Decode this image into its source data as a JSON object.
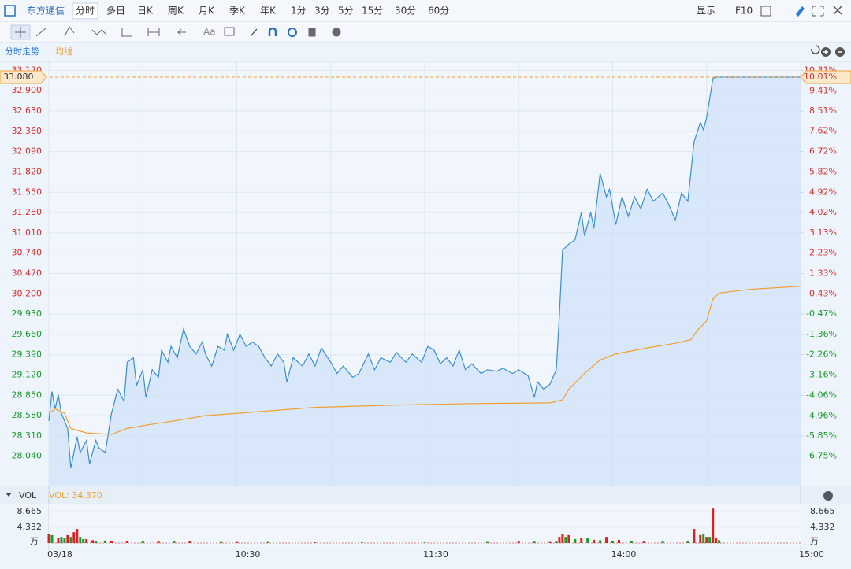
{
  "toolbar": {
    "stock": "东方通信",
    "periods": [
      "分时",
      "多日",
      "日K",
      "周K",
      "月K",
      "季K",
      "年K",
      "1分",
      "3分",
      "5分",
      "15分",
      "30分",
      "60分"
    ],
    "display": "显示",
    "f10": "F10",
    "text_tool": "Aa"
  },
  "tabs": [
    "分时走势",
    "均线"
  ],
  "chart_data": [
    {
      "type": "line",
      "xlim": [
        0,
        240
      ],
      "xticks": [
        {
          "value": 0,
          "label": "03/18"
        },
        {
          "value": 60,
          "label": "10:30"
        },
        {
          "value": 120,
          "label": "11:30"
        },
        {
          "value": 180,
          "label": "14:00"
        },
        {
          "value": 240,
          "label": "15:00"
        }
      ],
      "ylim": [
        27.65,
        33.185
      ],
      "yticks": [
        {
          "value": 28.04,
          "label": "28.040"
        },
        {
          "value": 28.31,
          "label": "28.310"
        },
        {
          "value": 28.58,
          "label": "28.580"
        },
        {
          "value": 28.85,
          "label": "28.850"
        },
        {
          "value": 29.12,
          "label": "29.120"
        },
        {
          "value": 29.39,
          "label": "29.390"
        },
        {
          "value": 29.66,
          "label": "29.660"
        },
        {
          "value": 29.93,
          "label": "29.930"
        },
        {
          "value": 30.2,
          "label": "30.200"
        },
        {
          "value": 30.47,
          "label": "30.470"
        },
        {
          "value": 30.74,
          "label": "30.740"
        },
        {
          "value": 31.01,
          "label": "31.010"
        },
        {
          "value": 31.28,
          "label": "31.280"
        },
        {
          "value": 31.55,
          "label": "31.550"
        },
        {
          "value": 31.82,
          "label": "31.820"
        },
        {
          "value": 32.09,
          "label": "32.090"
        },
        {
          "value": 32.36,
          "label": "32.360"
        },
        {
          "value": 32.63,
          "label": "32.630"
        },
        {
          "value": 32.9,
          "label": "32.900"
        },
        {
          "value": 33.17,
          "label": "33.170"
        }
      ],
      "y2lim": [
        -8.048,
        10.359
      ],
      "y2ticks": [
        {
          "value": -6.75,
          "label": "-6.75%"
        },
        {
          "value": -5.85,
          "label": "-5.85%"
        },
        {
          "value": -4.96,
          "label": "-4.96%"
        },
        {
          "value": -4.06,
          "label": "-4.06%"
        },
        {
          "value": -3.16,
          "label": "-3.16%"
        },
        {
          "value": -2.26,
          "label": "-2.26%"
        },
        {
          "value": -1.36,
          "label": "-1.36%"
        },
        {
          "value": -0.47,
          "label": "-0.47%"
        },
        {
          "value": 0.43,
          "label": "0.43%"
        },
        {
          "value": 1.33,
          "label": "1.33%"
        },
        {
          "value": 2.23,
          "label": "2.23%"
        },
        {
          "value": 3.13,
          "label": "3.13%"
        },
        {
          "value": 4.02,
          "label": "4.02%"
        },
        {
          "value": 4.92,
          "label": "4.92%"
        },
        {
          "value": 5.82,
          "label": "5.82%"
        },
        {
          "value": 6.72,
          "label": "6.72%"
        },
        {
          "value": 7.62,
          "label": "7.62%"
        },
        {
          "value": 8.51,
          "label": "8.51%"
        },
        {
          "value": 9.41,
          "label": "9.41%"
        },
        {
          "value": 10.31,
          "label": "10.31%"
        }
      ],
      "reference_line": {
        "value": 33.08,
        "label": "33.080",
        "y2_label": "10.01%",
        "color": "#f5a033"
      },
      "grid": true,
      "series": [
        {
          "color": "#3a8fd0",
          "fill": "#cfe2f8",
          "x": [
            0,
            1,
            2,
            3,
            4,
            6,
            7,
            9,
            10,
            12,
            13,
            15,
            16,
            18,
            20,
            22,
            24,
            25,
            27,
            28,
            30,
            31,
            33,
            35,
            36,
            38,
            39,
            41,
            43,
            45,
            47,
            49,
            50,
            52,
            54,
            56,
            57,
            59,
            61,
            63,
            65,
            67,
            69,
            71,
            73,
            75,
            76,
            78,
            81,
            83,
            85,
            87,
            90,
            92,
            94,
            97,
            99,
            102,
            104,
            106,
            109,
            111,
            114,
            116,
            119,
            121,
            123,
            125,
            127,
            129,
            131,
            133,
            135,
            138,
            140,
            143,
            145,
            148,
            150,
            153,
            155,
            156,
            158,
            160,
            162,
            163,
            164,
            166,
            168,
            170,
            171,
            173,
            174,
            176,
            178,
            179,
            181,
            183,
            185,
            187,
            189,
            191,
            193,
            196,
            198,
            200,
            202,
            204,
            206,
            208,
            209,
            210,
            212,
            213,
            240
          ],
          "values": [
            28.51,
            28.9,
            28.67,
            28.86,
            28.61,
            28.41,
            27.88,
            28.3,
            28.09,
            28.25,
            27.94,
            28.25,
            28.15,
            28.09,
            28.61,
            28.93,
            28.77,
            29.29,
            29.35,
            28.98,
            29.19,
            28.82,
            29.19,
            29.09,
            29.45,
            29.29,
            29.5,
            29.35,
            29.73,
            29.5,
            29.4,
            29.56,
            29.4,
            29.24,
            29.5,
            29.45,
            29.66,
            29.45,
            29.66,
            29.5,
            29.56,
            29.5,
            29.35,
            29.24,
            29.4,
            29.29,
            29.03,
            29.35,
            29.24,
            29.4,
            29.24,
            29.48,
            29.29,
            29.14,
            29.24,
            29.09,
            29.14,
            29.4,
            29.19,
            29.35,
            29.29,
            29.42,
            29.29,
            29.4,
            29.29,
            29.5,
            29.45,
            29.27,
            29.35,
            29.24,
            29.45,
            29.19,
            29.27,
            29.14,
            29.19,
            29.17,
            29.21,
            29.14,
            29.19,
            29.11,
            28.82,
            29.03,
            28.93,
            29.0,
            29.19,
            29.92,
            30.78,
            30.86,
            30.92,
            31.28,
            30.97,
            31.28,
            31.07,
            31.8,
            31.49,
            31.59,
            31.12,
            31.49,
            31.23,
            31.49,
            31.33,
            31.59,
            31.43,
            31.54,
            31.38,
            31.18,
            31.54,
            31.43,
            32.22,
            32.48,
            32.38,
            32.54,
            33.06,
            33.08,
            33.08
          ]
        },
        {
          "color": "#f0a030",
          "x": [
            0,
            2,
            5,
            7,
            12,
            20,
            25,
            32,
            40,
            50,
            60,
            85,
            110,
            135,
            160,
            164,
            166,
            171,
            176,
            181,
            191,
            201,
            205,
            207,
            210,
            212,
            214,
            224,
            240
          ],
          "values": [
            28.61,
            28.67,
            28.61,
            28.41,
            28.35,
            28.33,
            28.41,
            28.46,
            28.51,
            28.58,
            28.61,
            28.69,
            28.72,
            28.74,
            28.75,
            28.79,
            28.93,
            29.14,
            29.32,
            29.4,
            29.48,
            29.55,
            29.59,
            29.71,
            29.84,
            30.13,
            30.21,
            30.26,
            30.3
          ]
        }
      ]
    },
    {
      "type": "bar",
      "title": "VOL",
      "subtitle": "VOL: 34,370",
      "unit": "万",
      "ylim": [
        0,
        9.75
      ],
      "yticks": [
        4.332,
        8.665
      ],
      "series": [
        {
          "color": "#e02020",
          "x": [
            0,
            3,
            6,
            8,
            9,
            12,
            14,
            20,
            25,
            35,
            45,
            60,
            85,
            150,
            160,
            163,
            164,
            166,
            170,
            174,
            178,
            182,
            190,
            206,
            208,
            210,
            212,
            213
          ],
          "values": [
            2.6,
            1.3,
            2.2,
            3.0,
            3.9,
            1.1,
            0.8,
            0.6,
            0.5,
            0.4,
            0.5,
            0.3,
            0.2,
            0.4,
            0.3,
            1.7,
            2.6,
            2.2,
            1.3,
            0.9,
            1.7,
            0.9,
            0.4,
            3.9,
            2.2,
            1.7,
            9.5,
            1.5
          ]
        },
        {
          "color": "#1a9a2a",
          "x": [
            1,
            4,
            5,
            7,
            10,
            11,
            15,
            18,
            30,
            40,
            55,
            70,
            100,
            120,
            140,
            155,
            162,
            165,
            168,
            172,
            176,
            180,
            186,
            196,
            204,
            209,
            211,
            214
          ],
          "values": [
            2.2,
            1.7,
            1.3,
            1.7,
            1.7,
            1.1,
            0.6,
            0.7,
            0.5,
            0.4,
            0.3,
            0.3,
            0.2,
            0.2,
            0.3,
            0.4,
            0.6,
            1.7,
            1.1,
            1.3,
            0.8,
            0.6,
            0.5,
            0.4,
            0.6,
            2.6,
            1.7,
            0.8
          ]
        }
      ]
    }
  ]
}
